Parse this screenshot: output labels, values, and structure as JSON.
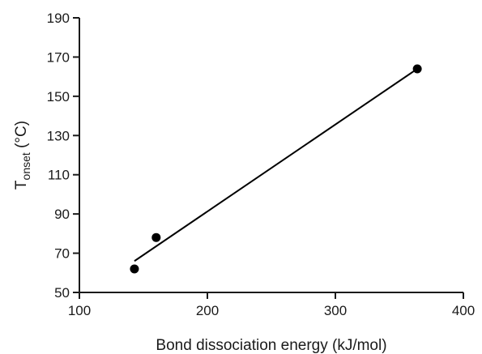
{
  "chart_data": {
    "type": "scatter",
    "xlabel": "Bond dissociation energy (kJ/mol)",
    "ylabel": {
      "main": "T",
      "subscript": "onset",
      "suffix": " (°C)"
    },
    "xlim": [
      100,
      400
    ],
    "ylim": [
      50,
      190
    ],
    "xticks": [
      100,
      200,
      300,
      400
    ],
    "yticks": [
      50,
      70,
      90,
      110,
      130,
      150,
      170,
      190
    ],
    "grid": false,
    "points": [
      {
        "x": 143,
        "y": 62
      },
      {
        "x": 160,
        "y": 78
      },
      {
        "x": 364,
        "y": 164
      }
    ],
    "trendline": {
      "x_start": 143,
      "y_start": 66,
      "x_end": 364,
      "y_end": 164
    },
    "colors": {
      "marker": "#000000",
      "line": "#000000",
      "axis": "#1a1a1a"
    }
  }
}
